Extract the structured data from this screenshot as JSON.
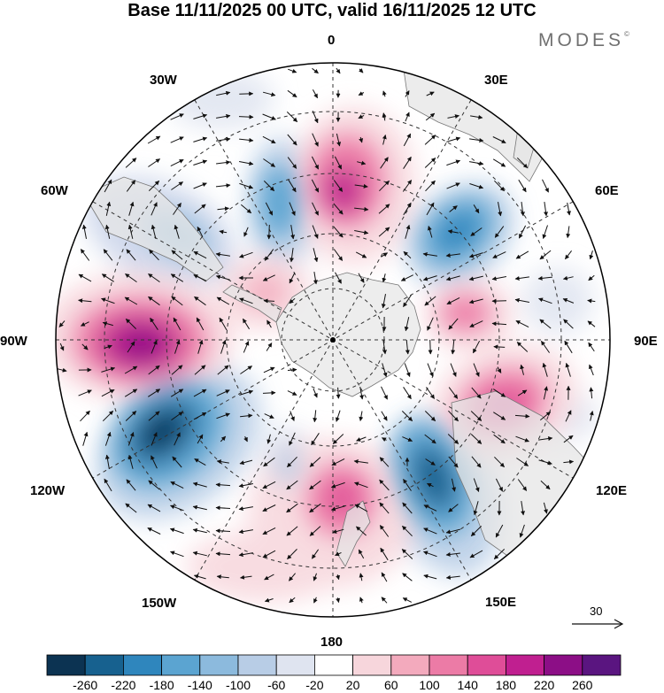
{
  "title": "Base 11/11/2025 00 UTC, valid 16/11/2025 12 UTC",
  "brand": "MODES",
  "brand_mark": "©",
  "projection": "south-polar-stereographic",
  "longitude_labels": {
    "top": "0",
    "ne30": "30E",
    "ne60": "60E",
    "east": "90E",
    "se120": "120E",
    "se150": "150E",
    "bottom": "180",
    "sw150": "150W",
    "sw120": "120W",
    "west": "90W",
    "nw60": "60W",
    "nw30": "30W"
  },
  "reference_vector": {
    "label": "30"
  },
  "colorbar": {
    "ticks": [
      "-260",
      "-220",
      "-180",
      "-140",
      "-100",
      "-60",
      "-20",
      "20",
      "60",
      "100",
      "140",
      "180",
      "220",
      "260"
    ],
    "colors": [
      "#0c3352",
      "#17618f",
      "#2f86bd",
      "#5ba4d1",
      "#8cbadd",
      "#b8cde6",
      "#dfe4f0",
      "#ffffff",
      "#f7d6dc",
      "#f3aabd",
      "#ec7ba6",
      "#df4d98",
      "#c01f90",
      "#8c0e86",
      "#5a1580"
    ]
  },
  "colors": {
    "land": "#e4e4e4",
    "antarctica": "#ececec",
    "grid": "#333333",
    "arrow": "#111111"
  }
}
